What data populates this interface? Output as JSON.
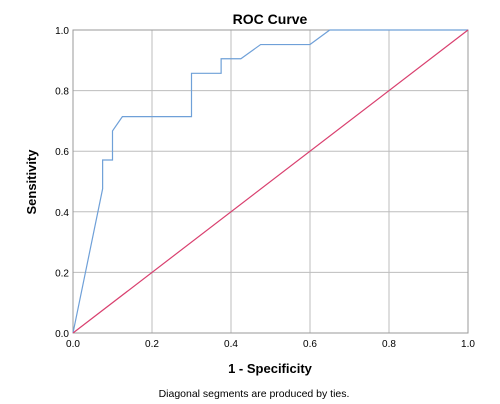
{
  "chart_data": {
    "type": "line",
    "title": "ROC Curve",
    "xlabel": "1 - Specificity",
    "ylabel": "Sensitivity",
    "xlim": [
      0,
      1
    ],
    "ylim": [
      0,
      1
    ],
    "x_ticks": [
      "0.0",
      "0.2",
      "0.4",
      "0.6",
      "0.8",
      "1.0"
    ],
    "y_ticks": [
      "0.0",
      "0.2",
      "0.4",
      "0.6",
      "0.8",
      "1.0"
    ],
    "grid": true,
    "footnote": "Diagonal segments are produced by ties.",
    "series": [
      {
        "color": "#6fa0d8",
        "points": [
          [
            0.0,
            0.0
          ],
          [
            0.075,
            0.476
          ],
          [
            0.075,
            0.571
          ],
          [
            0.1,
            0.571
          ],
          [
            0.1,
            0.667
          ],
          [
            0.125,
            0.714
          ],
          [
            0.3,
            0.714
          ],
          [
            0.3,
            0.857
          ],
          [
            0.375,
            0.857
          ],
          [
            0.375,
            0.905
          ],
          [
            0.425,
            0.905
          ],
          [
            0.475,
            0.952
          ],
          [
            0.6,
            0.952
          ],
          [
            0.65,
            1.0
          ],
          [
            1.0,
            1.0
          ]
        ]
      },
      {
        "color": "#d9406f",
        "points": [
          [
            0.0,
            0.0
          ],
          [
            1.0,
            1.0
          ]
        ]
      }
    ]
  }
}
